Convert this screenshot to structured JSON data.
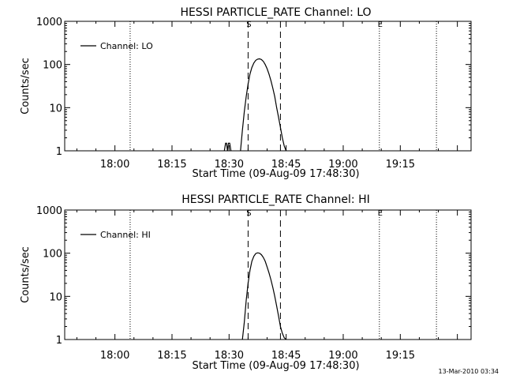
{
  "footer_timestamp": "13-Mar-2010 03:34",
  "chart_data": [
    {
      "type": "line",
      "title": "HESSI PARTICLE_RATE Channel: LO",
      "xlabel": "Start Time (09-Aug-09 17:48:30)",
      "ylabel": "Counts/sec",
      "yscale": "log",
      "ylim": [
        1,
        1000
      ],
      "xlim_minutes": [
        17.78,
        19.56
      ],
      "x_ticks": [
        "18:00",
        "18:15",
        "18:30",
        "18:45",
        "19:00",
        "19:15"
      ],
      "y_ticks": [
        "1",
        "10",
        "100",
        "1000"
      ],
      "legend": {
        "placement": "top-left",
        "label": "Channel: LO"
      },
      "markers": {
        "start_label": "S",
        "end_label": "E"
      },
      "series": [
        {
          "name": "Channel: LO",
          "x": [
            "18:28:45",
            "18:29:05",
            "18:29:20",
            "18:29:35",
            "18:29:50",
            "18:30:10",
            "18:30:30",
            "18:30:50",
            "18:31:10",
            "18:31:30",
            "18:31:50",
            "18:32:10",
            "18:32:30",
            "18:33:00",
            "18:33:30",
            "18:34:00",
            "18:34:30",
            "18:35:00",
            "18:35:30",
            "18:36:00",
            "18:36:30",
            "18:37:00",
            "18:37:30",
            "18:38:00",
            "18:38:30",
            "18:39:00",
            "18:39:30",
            "18:40:00",
            "18:40:30",
            "18:41:00",
            "18:41:30",
            "18:42:00",
            "18:42:30",
            "18:43:00",
            "18:43:30",
            "18:44:00",
            "18:44:30",
            "18:45:00",
            "18:45:30",
            "18:46:00"
          ],
          "y": [
            1,
            1.5,
            1.5,
            1,
            1.5,
            1.5,
            1,
            null,
            null,
            null,
            null,
            null,
            null,
            1,
            3,
            8,
            18,
            35,
            60,
            85,
            108,
            125,
            133,
            135,
            130,
            118,
            100,
            80,
            60,
            42,
            28,
            18,
            10,
            6,
            3.5,
            2,
            1.3,
            1,
            null,
            null
          ]
        }
      ],
      "vlines": [
        {
          "style": "dotted",
          "time": "18:04:00"
        },
        {
          "style": "dashed",
          "time": "18:35:00",
          "label": "S"
        },
        {
          "style": "dashed",
          "time": "18:43:30",
          "label": null
        },
        {
          "style": "dotted",
          "time": "19:09:30",
          "label": "E"
        },
        {
          "style": "dotted",
          "time": "19:24:30",
          "label": null
        }
      ]
    },
    {
      "type": "line",
      "title": "HESSI PARTICLE_RATE Channel: HI",
      "xlabel": "Start Time (09-Aug-09 17:48:30)",
      "ylabel": "Counts/sec",
      "yscale": "log",
      "ylim": [
        1,
        1000
      ],
      "xlim_minutes": [
        17.78,
        19.56
      ],
      "x_ticks": [
        "18:00",
        "18:15",
        "18:30",
        "18:45",
        "19:00",
        "19:15"
      ],
      "y_ticks": [
        "1",
        "10",
        "100",
        "1000"
      ],
      "legend": {
        "placement": "top-left",
        "label": "Channel: HI"
      },
      "markers": {
        "start_label": "S",
        "end_label": "E"
      },
      "series": [
        {
          "name": "Channel: HI",
          "x": [
            "18:33:30",
            "18:34:00",
            "18:34:30",
            "18:35:00",
            "18:35:30",
            "18:36:00",
            "18:36:30",
            "18:37:00",
            "18:37:30",
            "18:38:00",
            "18:38:30",
            "18:39:00",
            "18:39:30",
            "18:40:00",
            "18:40:30",
            "18:41:00",
            "18:41:30",
            "18:42:00",
            "18:42:30",
            "18:43:00",
            "18:43:30",
            "18:44:00",
            "18:44:30",
            "18:45:00",
            "18:45:30"
          ],
          "y": [
            1,
            2.5,
            8,
            20,
            40,
            65,
            85,
            98,
            102,
            100,
            92,
            80,
            65,
            48,
            35,
            24,
            16,
            10,
            6,
            3.5,
            2,
            1.4,
            1.1,
            1,
            null
          ]
        }
      ],
      "vlines": [
        {
          "style": "dotted",
          "time": "18:04:00"
        },
        {
          "style": "dashed",
          "time": "18:35:00",
          "label": "S"
        },
        {
          "style": "dashed",
          "time": "18:43:30",
          "label": null
        },
        {
          "style": "dotted",
          "time": "19:09:30",
          "label": "E"
        },
        {
          "style": "dotted",
          "time": "19:24:30",
          "label": null
        }
      ]
    }
  ]
}
